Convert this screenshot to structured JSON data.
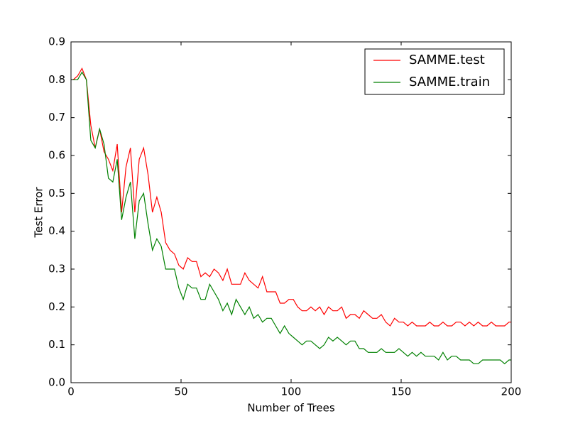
{
  "chart_data": {
    "type": "line",
    "xlabel": "Number of Trees",
    "ylabel": "Test Error",
    "x": [
      1,
      3,
      5,
      7,
      9,
      11,
      13,
      15,
      17,
      19,
      21,
      23,
      25,
      27,
      29,
      31,
      33,
      35,
      37,
      39,
      41,
      43,
      45,
      47,
      49,
      51,
      53,
      55,
      57,
      59,
      61,
      63,
      65,
      67,
      69,
      71,
      73,
      75,
      77,
      79,
      81,
      83,
      85,
      87,
      89,
      91,
      93,
      95,
      97,
      99,
      101,
      103,
      105,
      107,
      109,
      111,
      113,
      115,
      117,
      119,
      121,
      123,
      125,
      127,
      129,
      131,
      133,
      135,
      137,
      139,
      141,
      143,
      145,
      147,
      149,
      151,
      153,
      155,
      157,
      159,
      161,
      163,
      165,
      167,
      169,
      171,
      173,
      175,
      177,
      179,
      181,
      183,
      185,
      187,
      189,
      191,
      193,
      195,
      197,
      199,
      200
    ],
    "series": [
      {
        "name": "SAMME.test",
        "color": "#ff0000",
        "values": [
          0.8,
          0.81,
          0.83,
          0.8,
          0.68,
          0.62,
          0.67,
          0.61,
          0.59,
          0.56,
          0.63,
          0.45,
          0.57,
          0.62,
          0.45,
          0.59,
          0.62,
          0.55,
          0.45,
          0.49,
          0.45,
          0.37,
          0.35,
          0.34,
          0.31,
          0.3,
          0.33,
          0.32,
          0.32,
          0.28,
          0.29,
          0.28,
          0.3,
          0.29,
          0.27,
          0.3,
          0.26,
          0.26,
          0.26,
          0.29,
          0.27,
          0.26,
          0.25,
          0.28,
          0.24,
          0.24,
          0.24,
          0.21,
          0.21,
          0.22,
          0.22,
          0.2,
          0.19,
          0.19,
          0.2,
          0.19,
          0.2,
          0.18,
          0.2,
          0.19,
          0.19,
          0.2,
          0.17,
          0.18,
          0.18,
          0.17,
          0.19,
          0.18,
          0.17,
          0.17,
          0.18,
          0.16,
          0.15,
          0.17,
          0.16,
          0.16,
          0.15,
          0.16,
          0.15,
          0.15,
          0.15,
          0.16,
          0.15,
          0.15,
          0.16,
          0.15,
          0.15,
          0.16,
          0.16,
          0.15,
          0.16,
          0.15,
          0.16,
          0.15,
          0.15,
          0.16,
          0.15,
          0.15,
          0.15,
          0.16,
          0.16
        ]
      },
      {
        "name": "SAMME.train",
        "color": "#008000",
        "values": [
          0.8,
          0.8,
          0.82,
          0.8,
          0.64,
          0.62,
          0.67,
          0.63,
          0.54,
          0.53,
          0.59,
          0.43,
          0.49,
          0.53,
          0.38,
          0.48,
          0.5,
          0.42,
          0.35,
          0.38,
          0.36,
          0.3,
          0.3,
          0.3,
          0.25,
          0.22,
          0.26,
          0.25,
          0.25,
          0.22,
          0.22,
          0.26,
          0.24,
          0.22,
          0.19,
          0.21,
          0.18,
          0.22,
          0.2,
          0.18,
          0.2,
          0.17,
          0.18,
          0.16,
          0.17,
          0.17,
          0.15,
          0.13,
          0.15,
          0.13,
          0.12,
          0.11,
          0.1,
          0.11,
          0.11,
          0.1,
          0.09,
          0.1,
          0.12,
          0.11,
          0.12,
          0.11,
          0.1,
          0.11,
          0.11,
          0.09,
          0.09,
          0.08,
          0.08,
          0.08,
          0.09,
          0.08,
          0.08,
          0.08,
          0.09,
          0.08,
          0.07,
          0.08,
          0.07,
          0.08,
          0.07,
          0.07,
          0.07,
          0.06,
          0.08,
          0.06,
          0.07,
          0.07,
          0.06,
          0.06,
          0.06,
          0.05,
          0.05,
          0.06,
          0.06,
          0.06,
          0.06,
          0.06,
          0.05,
          0.06,
          0.06
        ]
      }
    ],
    "xlim": [
      0,
      200
    ],
    "xticks": [
      0,
      50,
      100,
      150,
      200
    ],
    "ylim": [
      0,
      0.9
    ],
    "yticks": [
      {
        "value": 0,
        "label": "0.0"
      },
      0.1,
      0.2,
      0.3,
      0.4,
      0.5,
      0.6,
      0.7,
      0.8,
      0.9
    ],
    "legend": "upper right"
  }
}
